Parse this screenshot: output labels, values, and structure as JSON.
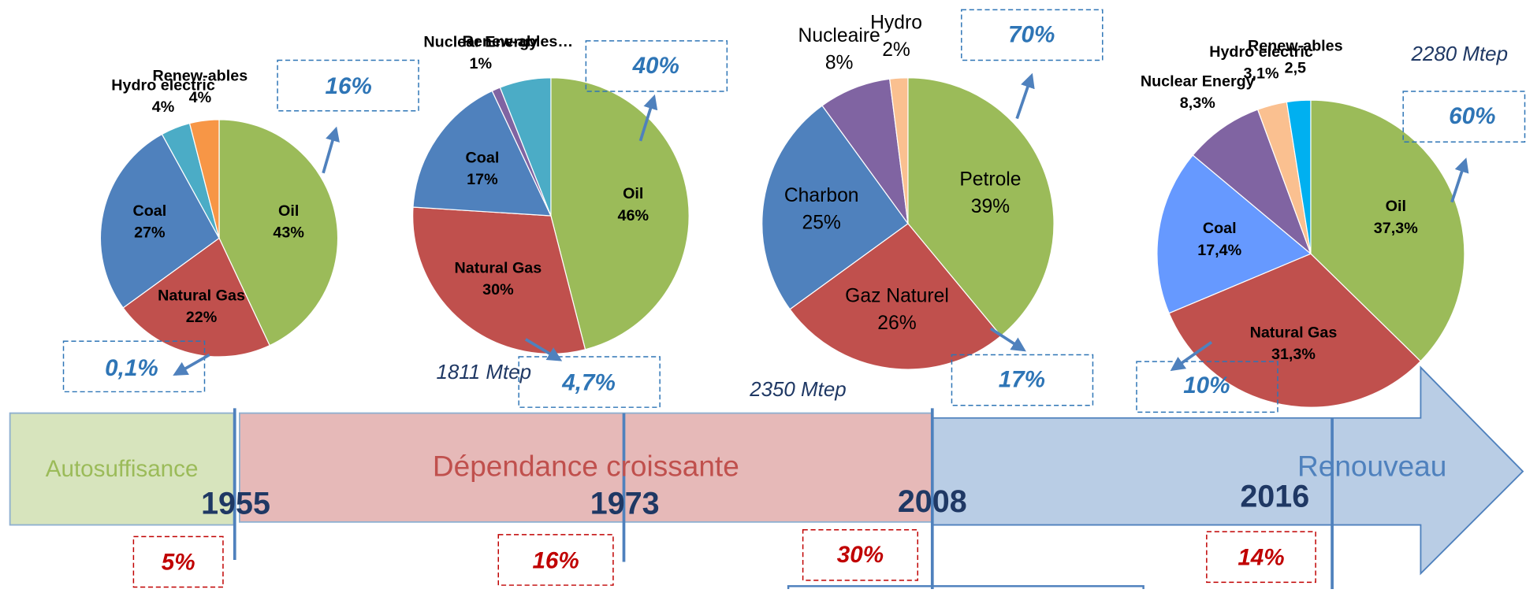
{
  "chart_data": [
    {
      "type": "pie",
      "categories": [
        "Oil",
        "Natural Gas",
        "Coal",
        "Hydro electric",
        "Renew-ables"
      ],
      "values": [
        43,
        22,
        27,
        4,
        4
      ],
      "value_labels": [
        "43%",
        "22%",
        "27%",
        "4%",
        "4%"
      ],
      "colors": [
        "#9bbb59",
        "#c0504d",
        "#4f81bd",
        "#4bacc6",
        "#f79646"
      ]
    },
    {
      "type": "pie",
      "categories": [
        "Oil",
        "Natural Gas",
        "Coal",
        "Nuclear Energy",
        "Renew-ables…"
      ],
      "values": [
        46,
        30,
        17,
        1,
        6
      ],
      "value_labels": [
        "46%",
        "30%",
        "17%",
        "1%",
        null
      ],
      "colors": [
        "#9bbb59",
        "#c0504d",
        "#4f81bd",
        "#8064a2",
        "#4bacc6"
      ]
    },
    {
      "type": "pie",
      "categories": [
        "Petrole",
        "Gaz Naturel",
        "Charbon",
        "Nucleaire",
        "Hydro"
      ],
      "values": [
        39,
        26,
        25,
        8,
        2
      ],
      "value_labels": [
        "39%",
        "26%",
        "25%",
        "8%",
        "2%"
      ],
      "colors": [
        "#9bbb59",
        "#c0504d",
        "#4f81bd",
        "#8064a2",
        "#fac090"
      ]
    },
    {
      "type": "pie",
      "categories": [
        "Oil",
        "Natural Gas",
        "Coal",
        "Nuclear Energy",
        "Hydro electric",
        "Renew-ables"
      ],
      "values": [
        37.3,
        31.3,
        17.4,
        8.3,
        3.1,
        2.5
      ],
      "value_labels": [
        "37,3%",
        "31,3%",
        "17,4%",
        "8,3%",
        "3,1%",
        "2,5"
      ],
      "colors": [
        "#9bbb59",
        "#c0504d",
        "#6699ff",
        "#8064a2",
        "#fac090",
        "#00b0f0"
      ]
    }
  ],
  "timeline": {
    "phases": [
      "Autosuffisance",
      "Dépendance croissante",
      "Renouveau"
    ],
    "years": [
      "1955",
      "1973",
      "2008",
      "2016"
    ],
    "notes": [
      "5%",
      "16%",
      "30%",
      "14%"
    ]
  },
  "callouts": [
    "16%",
    "0,1%",
    "40%",
    "4,7%",
    "70%",
    "17%",
    "60%",
    "10%"
  ],
  "totals": [
    "1811 Mtep",
    "2350 Mtep",
    "2280 Mtep"
  ]
}
